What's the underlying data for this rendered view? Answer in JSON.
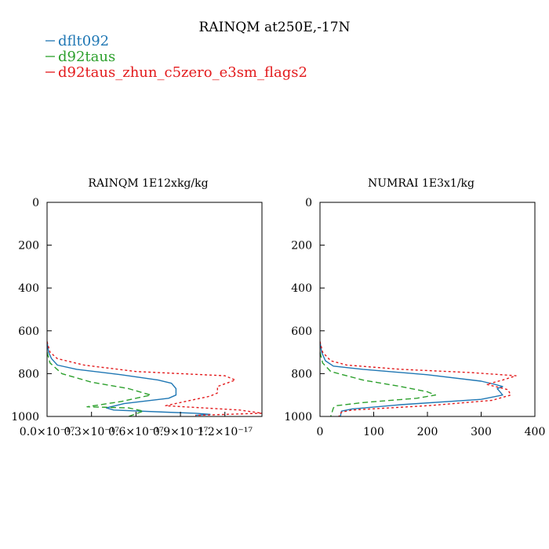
{
  "chart_data": {
    "title": "RAINQM at250E,-17N",
    "legend": [
      {
        "name": "dflt092",
        "color": "#1f77b4",
        "dash": "solid"
      },
      {
        "name": "d92taus",
        "color": "#2ca02c",
        "dash": "dashed"
      },
      {
        "name": "d92taus_zhun_c5zero_e3sm_flags2",
        "color": "#e31a1c",
        "dash": "dotted"
      }
    ],
    "panels": [
      {
        "type": "line",
        "title": "RAINQM  1E12xkg/kg",
        "xlim": [
          0,
          1.45
        ],
        "ylim": [
          0,
          1000
        ],
        "y_inverted": true,
        "xticks": [
          {
            "value": 0.0,
            "label": "0.0×10⁻¹⁷"
          },
          {
            "value": 0.3,
            "label": "0.3×10⁻¹⁷"
          },
          {
            "value": 0.6,
            "label": "0.6×10⁻¹⁷"
          },
          {
            "value": 0.9,
            "label": "0.9×10⁻¹⁷"
          },
          {
            "value": 1.2,
            "label": "1.2×10⁻¹⁷"
          }
        ],
        "yticks": [
          0,
          200,
          400,
          600,
          800,
          1000
        ],
        "series": [
          {
            "name": "dflt092",
            "points": [
              [
                0,
                650
              ],
              [
                0.01,
                700
              ],
              [
                0.03,
                730
              ],
              [
                0.07,
                760
              ],
              [
                0.2,
                780
              ],
              [
                0.5,
                805
              ],
              [
                0.75,
                830
              ],
              [
                0.84,
                845
              ],
              [
                0.87,
                870
              ],
              [
                0.87,
                900
              ],
              [
                0.82,
                915
              ],
              [
                0.52,
                940
              ],
              [
                0.4,
                960
              ],
              [
                0.45,
                970
              ],
              [
                0.8,
                980
              ],
              [
                1.0,
                985
              ],
              [
                1.1,
                990
              ],
              [
                1.0,
                995
              ]
            ]
          },
          {
            "name": "d92taus",
            "points": [
              [
                0,
                700
              ],
              [
                0.02,
                750
              ],
              [
                0.1,
                800
              ],
              [
                0.3,
                840
              ],
              [
                0.55,
                870
              ],
              [
                0.65,
                890
              ],
              [
                0.7,
                900
              ],
              [
                0.5,
                930
              ],
              [
                0.27,
                955
              ],
              [
                0.55,
                960
              ],
              [
                0.65,
                975
              ],
              [
                0.55,
                1000
              ]
            ]
          },
          {
            "name": "d92taus_zhun_c5zero_e3sm_flags2",
            "points": [
              [
                0,
                650
              ],
              [
                0.02,
                700
              ],
              [
                0.07,
                730
              ],
              [
                0.25,
                760
              ],
              [
                0.6,
                790
              ],
              [
                1.2,
                810
              ],
              [
                1.27,
                830
              ],
              [
                1.15,
                860
              ],
              [
                1.15,
                890
              ],
              [
                1.1,
                905
              ],
              [
                1.0,
                920
              ],
              [
                0.8,
                950
              ],
              [
                1.3,
                970
              ],
              [
                1.45,
                985
              ],
              [
                1.0,
                995
              ]
            ]
          }
        ]
      },
      {
        "type": "line",
        "title": "NUMRAI  1E3x1/kg",
        "xlim": [
          0,
          400
        ],
        "ylim": [
          0,
          1000
        ],
        "y_inverted": true,
        "xticks": [
          {
            "value": 0,
            "label": "0"
          },
          {
            "value": 100,
            "label": "100"
          },
          {
            "value": 200,
            "label": "200"
          },
          {
            "value": 300,
            "label": "300"
          },
          {
            "value": 400,
            "label": "400"
          }
        ],
        "yticks": [
          0,
          200,
          400,
          600,
          800,
          1000
        ],
        "series": [
          {
            "name": "dflt092",
            "points": [
              [
                0,
                650
              ],
              [
                3,
                700
              ],
              [
                10,
                740
              ],
              [
                25,
                765
              ],
              [
                80,
                780
              ],
              [
                200,
                805
              ],
              [
                300,
                835
              ],
              [
                325,
                850
              ],
              [
                340,
                860
              ],
              [
                330,
                870
              ],
              [
                335,
                885
              ],
              [
                340,
                900
              ],
              [
                300,
                920
              ],
              [
                150,
                945
              ],
              [
                60,
                965
              ],
              [
                40,
                975
              ],
              [
                38,
                1000
              ]
            ]
          },
          {
            "name": "d92taus",
            "points": [
              [
                0,
                700
              ],
              [
                5,
                750
              ],
              [
                20,
                790
              ],
              [
                80,
                830
              ],
              [
                150,
                860
              ],
              [
                200,
                885
              ],
              [
                215,
                900
              ],
              [
                180,
                915
              ],
              [
                80,
                935
              ],
              [
                30,
                950
              ],
              [
                25,
                960
              ],
              [
                20,
                1000
              ]
            ]
          },
          {
            "name": "d92taus_zhun_c5zero_e3sm_flags2",
            "points": [
              [
                0,
                650
              ],
              [
                5,
                700
              ],
              [
                20,
                740
              ],
              [
                50,
                760
              ],
              [
                150,
                780
              ],
              [
                280,
                795
              ],
              [
                365,
                810
              ],
              [
                340,
                830
              ],
              [
                310,
                850
              ],
              [
                350,
                875
              ],
              [
                355,
                900
              ],
              [
                320,
                925
              ],
              [
                200,
                950
              ],
              [
                60,
                970
              ],
              [
                40,
                980
              ],
              [
                35,
                1000
              ]
            ]
          }
        ]
      }
    ]
  }
}
